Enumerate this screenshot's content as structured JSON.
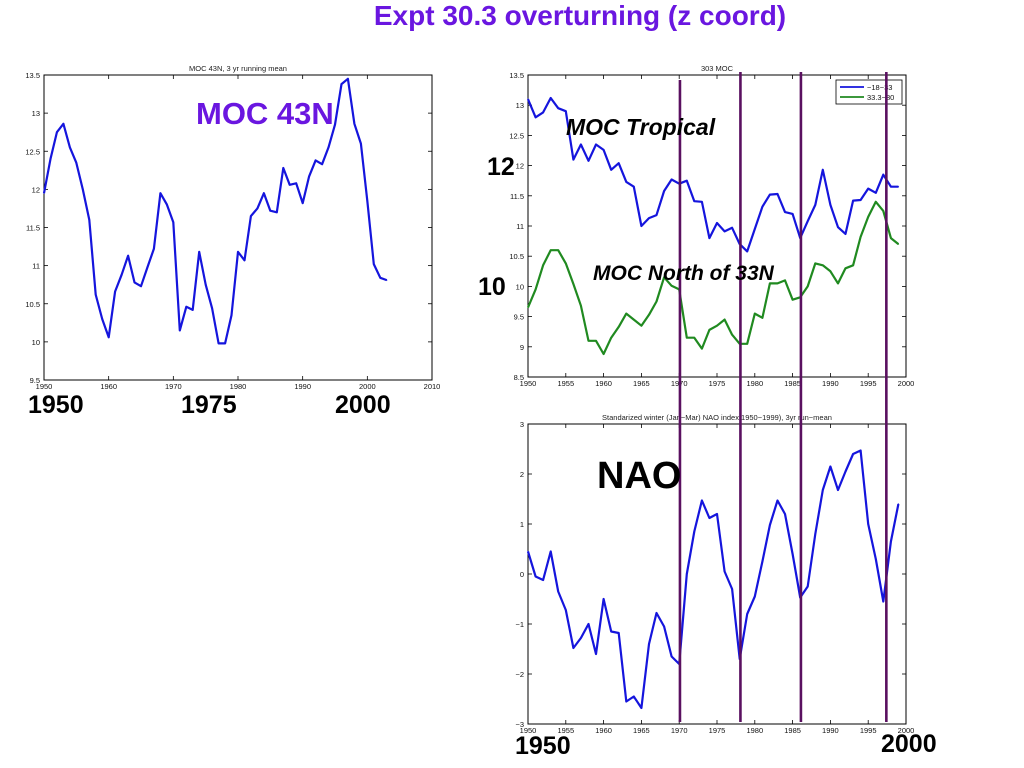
{
  "slide": {
    "title": "Expt 30.3 overturning (z coord)",
    "annotations": {
      "moc43n": "MOC 43N",
      "moc_tropical": "MOC Tropical",
      "moc_north33": "MOC North of 33N",
      "nao": "NAO",
      "label_12": "12",
      "label_10": "10"
    },
    "year_labels": {
      "a1": "1950",
      "a2": "1975",
      "a3": "2000",
      "b1": "1950",
      "b2": "2000"
    },
    "vertical_marker_years": [
      1970.1,
      1978.1,
      1986.1,
      1997.4
    ],
    "colors": {
      "title": "#6a16e0",
      "series_blue": "#1515dd",
      "series_green": "#208a20",
      "marker": "#5a1060"
    }
  },
  "chart_data": [
    {
      "type": "line",
      "title": "MOC 43N, 3 yr running mean",
      "xlim": [
        1950,
        2010
      ],
      "ylim": [
        9.5,
        13.5
      ],
      "xticks": [
        "1950",
        "1960",
        "1970",
        "1980",
        "1990",
        "2000",
        "2010"
      ],
      "yticks": [
        "9.5",
        "10",
        "10.5",
        "11",
        "11.5",
        "12",
        "12.5",
        "13",
        "13.5"
      ],
      "series": [
        {
          "x": [
            1950,
            1951,
            1952,
            1953,
            1954,
            1955,
            1956,
            1957,
            1958,
            1959,
            1960,
            1961,
            1962,
            1963,
            1964,
            1965,
            1966,
            1967,
            1968,
            1969,
            1970,
            1971,
            1972,
            1973,
            1974,
            1975,
            1976,
            1977,
            1978,
            1979,
            1980,
            1981,
            1982,
            1983,
            1984,
            1985,
            1986,
            1987,
            1988,
            1989,
            1990,
            1991,
            1992,
            1993,
            1994,
            1995,
            1996,
            1997,
            1998,
            1999,
            2000,
            2001,
            2002,
            2003
          ],
          "values": [
            11.95,
            12.4,
            12.75,
            12.86,
            12.55,
            12.35,
            12.0,
            11.6,
            10.62,
            10.3,
            10.06,
            10.66,
            10.88,
            11.13,
            10.78,
            10.73,
            10.98,
            11.22,
            11.95,
            11.8,
            11.57,
            10.15,
            10.46,
            10.42,
            11.18,
            10.75,
            10.44,
            9.98,
            9.98,
            10.35,
            11.18,
            11.07,
            11.65,
            11.75,
            11.95,
            11.72,
            11.7,
            12.28,
            12.06,
            12.08,
            11.82,
            12.17,
            12.38,
            12.33,
            12.55,
            12.85,
            13.38,
            13.45,
            12.86,
            12.6,
            11.85,
            11.02,
            10.84,
            10.81
          ]
        }
      ]
    },
    {
      "type": "line",
      "title": "303 MOC",
      "xlim": [
        1950,
        2000
      ],
      "ylim": [
        8.5,
        13.5
      ],
      "xticks": [
        "1950",
        "1955",
        "1960",
        "1965",
        "1970",
        "1975",
        "1980",
        "1985",
        "1990",
        "1995",
        "2000"
      ],
      "yticks": [
        "8.5",
        "9",
        "9.5",
        "10",
        "10.5",
        "11",
        "11.5",
        "12",
        "12.5",
        "13",
        "13.5"
      ],
      "legend": "top-right",
      "series": [
        {
          "name": "−18−33",
          "x": [
            1950,
            1951,
            1952,
            1953,
            1954,
            1955,
            1956,
            1957,
            1958,
            1959,
            1960,
            1961,
            1962,
            1963,
            1964,
            1965,
            1966,
            1967,
            1968,
            1969,
            1970,
            1971,
            1972,
            1973,
            1974,
            1975,
            1976,
            1977,
            1978,
            1979,
            1980,
            1981,
            1982,
            1983,
            1984,
            1985,
            1986,
            1987,
            1988,
            1989,
            1990,
            1991,
            1992,
            1993,
            1994,
            1995,
            1996,
            1997,
            1998,
            1999
          ],
          "values": [
            13.1,
            12.8,
            12.88,
            13.12,
            12.95,
            12.9,
            12.1,
            12.35,
            12.08,
            12.35,
            12.26,
            11.93,
            12.04,
            11.73,
            11.65,
            11.0,
            11.13,
            11.18,
            11.58,
            11.77,
            11.7,
            11.75,
            11.41,
            11.4,
            10.8,
            11.05,
            10.91,
            10.97,
            10.7,
            10.58,
            10.95,
            11.32,
            11.52,
            11.53,
            11.23,
            11.2,
            10.8,
            11.08,
            11.35,
            11.93,
            11.35,
            10.98,
            10.87,
            11.42,
            11.43,
            11.62,
            11.55,
            11.85,
            11.65,
            11.65
          ]
        },
        {
          "name": "33.3−80",
          "x": [
            1950,
            1951,
            1952,
            1953,
            1954,
            1955,
            1956,
            1957,
            1958,
            1959,
            1960,
            1961,
            1962,
            1963,
            1964,
            1965,
            1966,
            1967,
            1968,
            1969,
            1970,
            1971,
            1972,
            1973,
            1974,
            1975,
            1976,
            1977,
            1978,
            1979,
            1980,
            1981,
            1982,
            1983,
            1984,
            1985,
            1986,
            1987,
            1988,
            1989,
            1990,
            1991,
            1992,
            1993,
            1994,
            1995,
            1996,
            1997,
            1998,
            1999
          ],
          "values": [
            9.65,
            9.95,
            10.35,
            10.6,
            10.6,
            10.38,
            10.04,
            9.68,
            9.1,
            9.1,
            8.88,
            9.15,
            9.33,
            9.55,
            9.45,
            9.35,
            9.53,
            9.75,
            10.15,
            10.01,
            9.95,
            9.15,
            9.15,
            8.97,
            9.28,
            9.35,
            9.45,
            9.2,
            9.05,
            9.05,
            9.55,
            9.48,
            10.05,
            10.05,
            10.1,
            9.78,
            9.82,
            10.0,
            10.38,
            10.35,
            10.25,
            10.05,
            10.3,
            10.35,
            10.82,
            11.15,
            11.4,
            11.25,
            10.8,
            10.7
          ]
        }
      ]
    },
    {
      "type": "line",
      "title": "Standarized winter (Jan−Mar) NAO index 1950−1999), 3yr run−mean",
      "xlim": [
        1950,
        2000
      ],
      "ylim": [
        -3,
        3
      ],
      "xticks": [
        "1950",
        "1955",
        "1960",
        "1965",
        "1970",
        "1975",
        "1980",
        "1985",
        "1990",
        "1995",
        "2000"
      ],
      "yticks": [
        "−3",
        "−2",
        "−1",
        "0",
        "1",
        "2",
        "3"
      ],
      "series": [
        {
          "x": [
            1950,
            1951,
            1952,
            1953,
            1954,
            1955,
            1956,
            1957,
            1958,
            1959,
            1960,
            1961,
            1962,
            1963,
            1964,
            1965,
            1966,
            1967,
            1968,
            1969,
            1970,
            1971,
            1972,
            1973,
            1974,
            1975,
            1976,
            1977,
            1978,
            1979,
            1980,
            1981,
            1982,
            1983,
            1984,
            1985,
            1986,
            1987,
            1988,
            1989,
            1990,
            1991,
            1992,
            1993,
            1994,
            1995,
            1996,
            1997,
            1998,
            1999
          ],
          "values": [
            0.45,
            -0.05,
            -0.12,
            0.45,
            -0.35,
            -0.72,
            -1.48,
            -1.28,
            -1.0,
            -1.6,
            -0.5,
            -1.15,
            -1.18,
            -2.55,
            -2.45,
            -2.68,
            -1.4,
            -0.78,
            -1.05,
            -1.65,
            -1.8,
            0.0,
            0.85,
            1.47,
            1.12,
            1.2,
            0.05,
            -0.3,
            -1.7,
            -0.8,
            -0.45,
            0.25,
            0.98,
            1.47,
            1.2,
            0.4,
            -0.47,
            -0.25,
            0.8,
            1.68,
            2.15,
            1.68,
            2.05,
            2.4,
            2.47,
            1.0,
            0.3,
            -0.55,
            0.65,
            1.4
          ]
        }
      ]
    }
  ]
}
